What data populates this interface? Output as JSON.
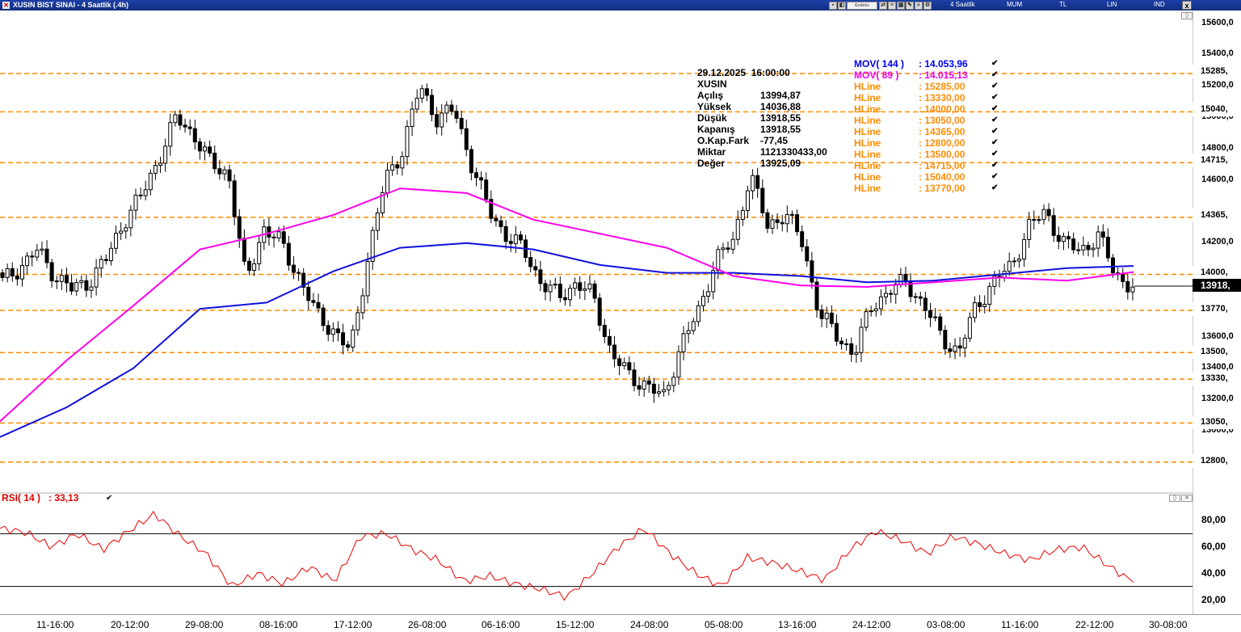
{
  "window": {
    "title": "XUSIN BIST SINAI - 4 Saatlik (.4h)",
    "search_placeholder": "Endeks",
    "period": "4 Saatlik",
    "chart_style": "MUM",
    "scale_tl": "TL",
    "scale_lin": "LIN",
    "ind": "IND",
    "close": "x"
  },
  "price_axis": {
    "ticks": [
      "15600,0",
      "15400,0",
      "15200,0",
      "15000,0",
      "14800,0",
      "14600,0",
      "14200,0",
      "13600,0",
      "13400,0",
      "13200,0",
      "13000,0"
    ],
    "hlines": [
      "15285,",
      "15040,",
      "14715,",
      "14365,",
      "14000,",
      "13770,",
      "13500,",
      "13330,",
      "13050,",
      "12800,"
    ],
    "current": "13918,"
  },
  "info": {
    "datetime": "29.12.2025  16:00:00",
    "symbol": "XUSIN",
    "rows": [
      {
        "k": "Açılış",
        "v": "13994,87"
      },
      {
        "k": "Yüksek",
        "v": "14036,88"
      },
      {
        "k": "Düşük",
        "v": "13918,55"
      },
      {
        "k": "Kapanış",
        "v": "13918,55"
      },
      {
        "k": "O.Kap.Fark",
        "v": "-77,45"
      },
      {
        "k": "Miktar",
        "v": "1121330433,00"
      },
      {
        "k": "Değer",
        "v": "13925,09"
      }
    ]
  },
  "legend": {
    "mov144": {
      "name": "MOV( 144 )",
      "value": ": 14.053,96",
      "color": "#0000ee"
    },
    "mov89": {
      "name": "MOV( 89 )",
      "value": ": 14.015,13",
      "color": "#ee00ee"
    },
    "hline_name": "HLine",
    "hlines": [
      ": 15285,00",
      ": 13330,00",
      ": 14000,00",
      ": 13050,00",
      ": 14365,00",
      ": 12800,00",
      ": 13500,00",
      ": 14715,00",
      ": 15040,00",
      ": 13770,00"
    ],
    "hline_color": "#ff8c00"
  },
  "rsi": {
    "label": "RSI( 14 )   : 33,13",
    "ticks": [
      "80,00",
      "60,00",
      "40,00",
      "20,00"
    ],
    "color": "#ee0000"
  },
  "x_axis": [
    "11-16:00",
    "20-12:00",
    "29-08:00",
    "08-16:00",
    "17-12:00",
    "26-08:00",
    "06-16:00",
    "15-12:00",
    "24-08:00",
    "05-08:00",
    "13-16:00",
    "24-12:00",
    "03-08:00",
    "11-16:00",
    "22-12:00",
    "30-08:00"
  ],
  "chart_data": {
    "type": "candlestick",
    "title": "XUSIN BIST SINAI - 4 Saatlik (.4h)",
    "ylim": [
      12700,
      15700
    ],
    "hlines": [
      15285,
      15040,
      14715,
      14365,
      14000,
      13770,
      13500,
      13330,
      13050,
      12800
    ],
    "close_path": [
      13950,
      14050,
      14150,
      14000,
      13900,
      13960,
      14100,
      14350,
      14500,
      14750,
      15000,
      14900,
      14700,
      14650,
      13950,
      14300,
      14200,
      14000,
      13750,
      13650,
      13500,
      14100,
      14600,
      14800,
      15200,
      15000,
      15050,
      14700,
      14400,
      14250,
      14150,
      13950,
      13850,
      13950,
      13850,
      13500,
      13350,
      13300,
      13200,
      13550,
      13750,
      14100,
      14200,
      14650,
      14300,
      14400,
      14200,
      13750,
      13600,
      13500,
      13800,
      13900,
      13950,
      13800,
      13600,
      13500,
      13800,
      13950,
      14050,
      14300,
      14400,
      14200,
      14150,
      14250,
      14000,
      13918
    ],
    "mov144": [
      12960,
      13150,
      13400,
      13780,
      13820,
      14020,
      14170,
      14200,
      14160,
      14060,
      14010,
      14010,
      13990,
      13950,
      13960,
      14000,
      14040,
      14054
    ],
    "mov89": [
      13060,
      13450,
      13800,
      14160,
      14260,
      14380,
      14550,
      14520,
      14350,
      14260,
      14170,
      13990,
      13930,
      13920,
      13950,
      13980,
      13960,
      14015
    ],
    "rsi": [
      74,
      71,
      60,
      70,
      58,
      72,
      85,
      68,
      55,
      30,
      40,
      32,
      45,
      34,
      68,
      70,
      58,
      50,
      34,
      38,
      32,
      28,
      22,
      40,
      60,
      74,
      55,
      40,
      30,
      52,
      48,
      42,
      35,
      58,
      72,
      65,
      55,
      68,
      62,
      55,
      50,
      58,
      60,
      46,
      33
    ],
    "rsi_levels": [
      70,
      30
    ],
    "rsi_ylim": [
      10,
      90
    ]
  }
}
